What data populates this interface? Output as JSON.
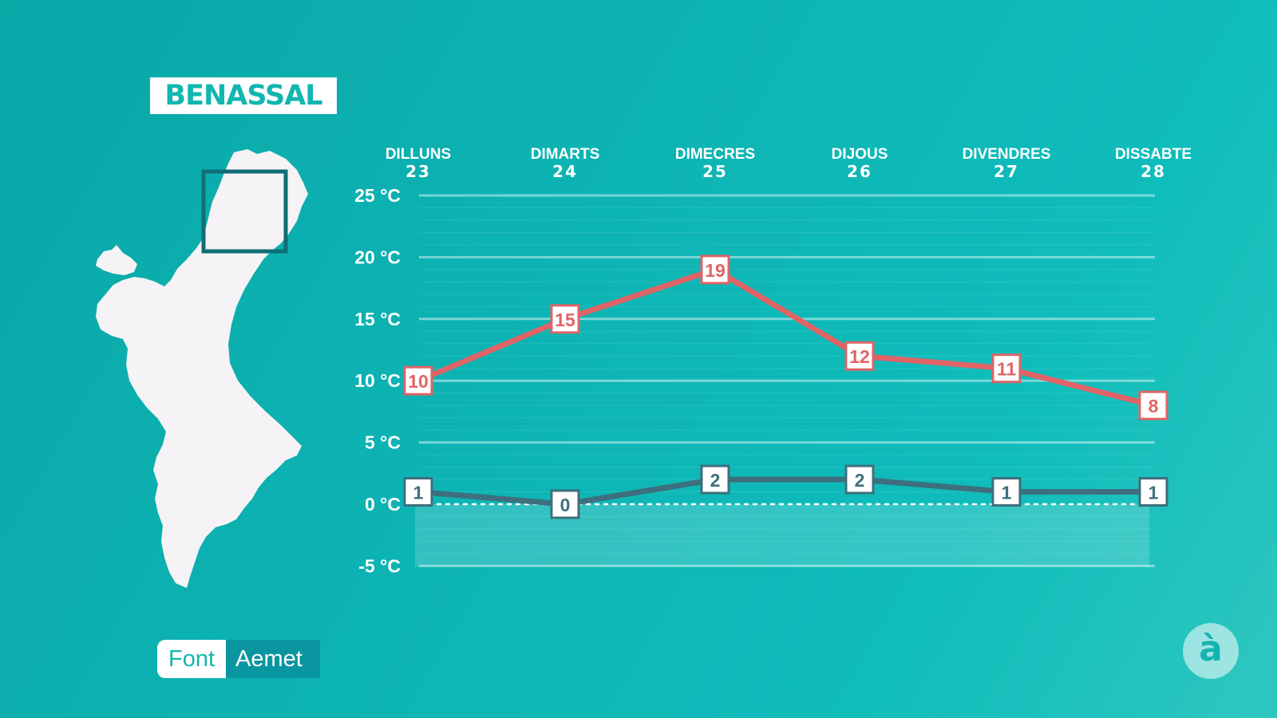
{
  "station": "BENASSAL",
  "source": {
    "label": "Font",
    "value": "Aemet"
  },
  "logo": {
    "glyph": "à"
  },
  "colors": {
    "max_line": "#e06467",
    "min_line": "#3d6f7e",
    "label_border_max": "#e06467",
    "label_border_min": "#3d6f7e"
  },
  "chart_data": {
    "type": "line",
    "categories": [
      {
        "day": "DILLUNS",
        "date": "23"
      },
      {
        "day": "DIMARTS",
        "date": "24"
      },
      {
        "day": "DIMECRES",
        "date": "25"
      },
      {
        "day": "DIJOUS",
        "date": "26"
      },
      {
        "day": "DIVENDRES",
        "date": "27"
      },
      {
        "day": "DISSABTE",
        "date": "28"
      }
    ],
    "series": [
      {
        "values": [
          10,
          15,
          19,
          12,
          11,
          8
        ]
      },
      {
        "values": [
          1,
          0,
          2,
          2,
          1,
          1
        ]
      }
    ],
    "ylim": [
      -5,
      25
    ],
    "yticks": [
      25,
      20,
      15,
      10,
      5,
      0,
      -5
    ],
    "ytick_labels": [
      "25 °C",
      "20 °C",
      "15 °C",
      "10 °C",
      "5 °C",
      "0 °C",
      "-5 °C"
    ],
    "grid": true,
    "zero_line": "dashed"
  }
}
